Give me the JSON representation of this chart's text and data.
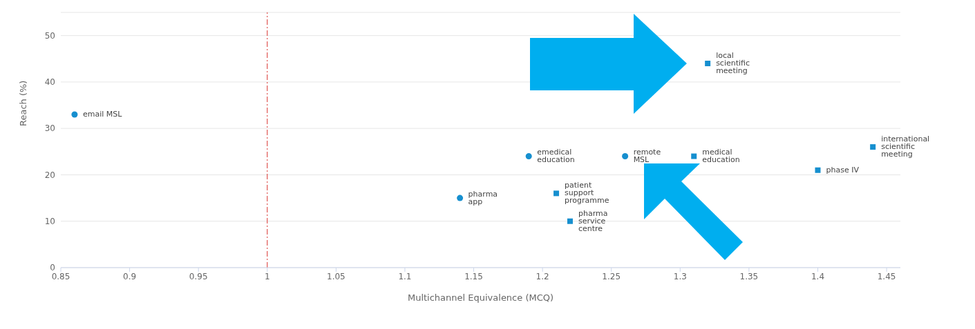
{
  "chart_data": {
    "type": "scatter",
    "xlabel": "Multichannel Equivalence (MCQ)",
    "ylabel": "Reach (%)",
    "xlim": [
      0.85,
      1.46
    ],
    "xticks": [
      0.85,
      0.9,
      0.95,
      1,
      1.05,
      1.1,
      1.15,
      1.2,
      1.25,
      1.3,
      1.35,
      1.4,
      1.45
    ],
    "ylim": [
      0,
      55
    ],
    "yticks": [
      0,
      10,
      20,
      30,
      40,
      50
    ],
    "grid": "y",
    "series": [
      {
        "color": "#168fcf",
        "marker": "circle",
        "x": [
          0.86,
          1.14,
          1.19,
          1.26
        ],
        "values": [
          33,
          15,
          24,
          24
        ]
      },
      {
        "color": "#168fcf",
        "marker": "square",
        "x": [
          1.21,
          1.22,
          1.31,
          1.32,
          1.4,
          1.44
        ],
        "values": [
          16,
          10,
          24,
          44,
          21,
          26
        ]
      }
    ],
    "ref_lines": [
      {
        "axis": "x",
        "value": 1,
        "color": "#d9302c",
        "line_style": "dashdot"
      }
    ],
    "annotations": [
      {
        "text": "email MSL",
        "x": 0.86,
        "y": 33
      },
      {
        "text": "pharma\napp",
        "x": 1.14,
        "y": 15
      },
      {
        "text": "emedical\neducation",
        "x": 1.19,
        "y": 24
      },
      {
        "text": "remote\nMSL",
        "x": 1.26,
        "y": 24
      },
      {
        "text": "patient\nsupport\nprogramme",
        "x": 1.21,
        "y": 16
      },
      {
        "text": "pharma\nservice\ncentre",
        "x": 1.22,
        "y": 10
      },
      {
        "text": "medical\neducation",
        "x": 1.31,
        "y": 24
      },
      {
        "text": "local\nscientific\nmeeting",
        "x": 1.32,
        "y": 44
      },
      {
        "text": "phase IV",
        "x": 1.4,
        "y": 21
      },
      {
        "text": "international\nscientific\nmeeting",
        "x": 1.44,
        "y": 26
      }
    ]
  }
}
